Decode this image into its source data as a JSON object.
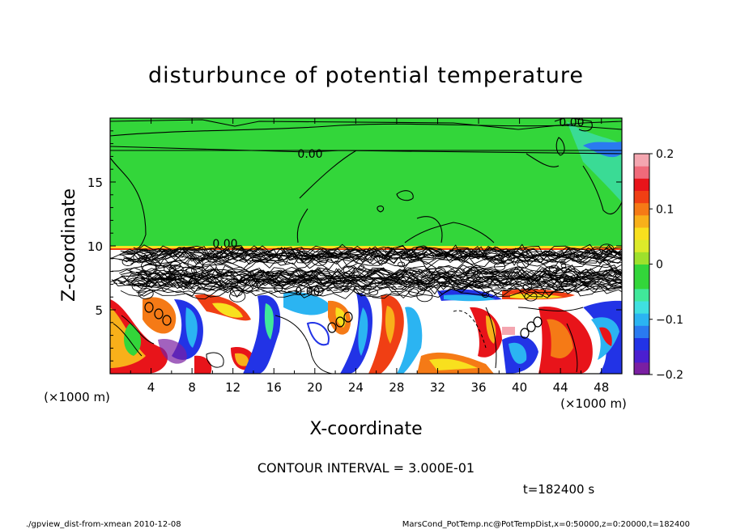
{
  "chart_data": {
    "type": "heatmap",
    "title": "disturbunce of potential temperature",
    "xlabel": "X-coordinate",
    "ylabel": "Z-coordinate",
    "x_unit": "(×1000 m)",
    "y_unit": "(×1000 m)",
    "xlim": [
      0,
      50
    ],
    "ylim": [
      0,
      20
    ],
    "x_ticks": [
      4,
      8,
      12,
      16,
      20,
      24,
      28,
      32,
      36,
      40,
      44,
      48
    ],
    "y_ticks": [
      5,
      10,
      15
    ],
    "colorbar": {
      "range": [
        -0.2,
        0.2
      ],
      "tick_values": [
        0.2,
        0.1,
        0,
        -0.1,
        -0.2
      ],
      "tick_labels": [
        "0.2",
        "0.1",
        "0",
        "−0.1",
        "−0.2"
      ],
      "colors": [
        "#7a1fa2",
        "#4b1fd0",
        "#2233e6",
        "#2a7af0",
        "#2bb4f2",
        "#3fe0e0",
        "#40e89a",
        "#33d63a",
        "#33d63a",
        "#9ee12c",
        "#dcea2a",
        "#f8e01e",
        "#f8b01a",
        "#f57a16",
        "#f03f14",
        "#e8141a",
        "#f06a7a",
        "#f4a6b0"
      ]
    },
    "contour_labels": [
      {
        "text": "0.00"
      },
      {
        "text": "0.00"
      },
      {
        "text": "0.00"
      },
      {
        "text": "0.00"
      }
    ],
    "contour_interval_text": "CONTOUR INTERVAL = 3.000E-01",
    "time_text": "t=182400 s"
  },
  "footer": {
    "left": "./gpview_dist-from-xmean  2010-12-08",
    "right": "MarsCond_PotTemp.nc@PotTempDist,x=0:50000,z=0:20000,t=182400"
  }
}
